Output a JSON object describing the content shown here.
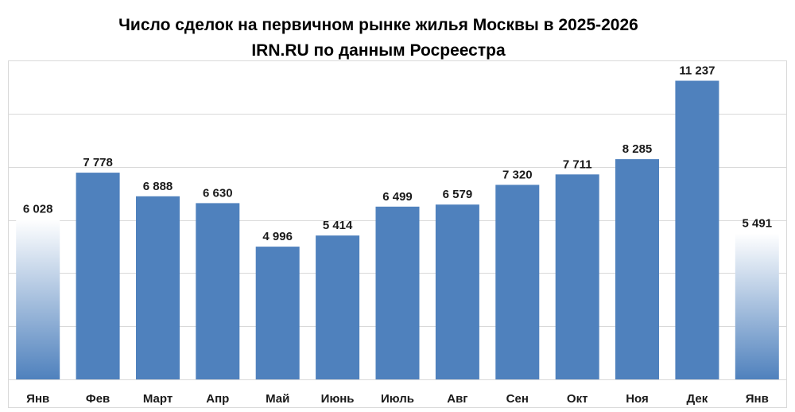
{
  "chart_data": {
    "type": "bar",
    "title": "Число сделок на первичном рынке жилья  Москвы в 2025-2026",
    "subtitle": "IRN.RU по данным Росреестра",
    "categories": [
      "Янв",
      "Фев",
      "Март",
      "Апр",
      "Май",
      "Июнь",
      "Июль",
      "Авг",
      "Сен",
      "Окт",
      "Ноя",
      "Дек",
      "Янв"
    ],
    "values": [
      6028,
      7778,
      6888,
      6630,
      4996,
      5414,
      6499,
      6579,
      7320,
      7711,
      8285,
      11237,
      5491
    ],
    "value_labels": [
      "6 028",
      "7 778",
      "6 888",
      "6 630",
      "4 996",
      "5 414",
      "6 499",
      "6 579",
      "7 320",
      "7 711",
      "8 285",
      "11 237",
      "5 491"
    ],
    "highlight_style": [
      "gradient",
      "solid",
      "solid",
      "solid",
      "solid",
      "solid",
      "solid",
      "solid",
      "solid",
      "solid",
      "solid",
      "solid",
      "gradient"
    ],
    "ylim": [
      0,
      12000
    ],
    "gridlines": [
      2000,
      4000,
      6000,
      8000,
      10000,
      12000
    ],
    "grid": true,
    "legend": "none",
    "colors": {
      "bar": "#4f81bd",
      "gradient_top": "#ffffff",
      "gradient_bottom": "#4f81bd",
      "grid": "#d9d9d9"
    }
  }
}
